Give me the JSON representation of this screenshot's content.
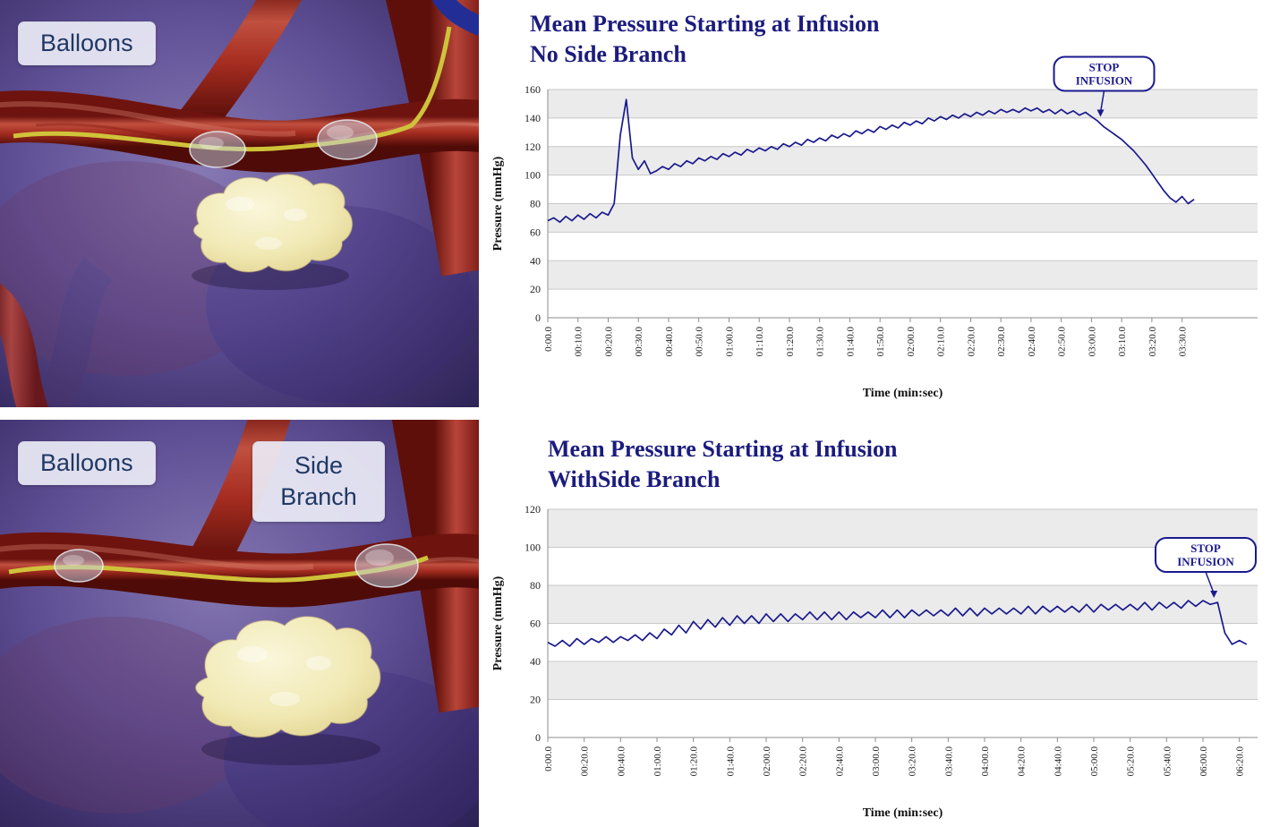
{
  "panels": {
    "top_left": {
      "balloons_label": "Balloons"
    },
    "bottom_left": {
      "balloons_label": "Balloons",
      "side_branch_label": "Side Branch"
    }
  },
  "colors": {
    "line": "#1a1a8e",
    "title": "#1b1b7e",
    "band_gray": "#ebebeb",
    "grid": "#c9c9c9",
    "axis": "#8c8c8c",
    "tick_text": "#222222",
    "axis_label": "#111111"
  },
  "chart_data": [
    {
      "type": "line",
      "title": "Mean Pressure Starting at Infusion",
      "subtitle": "No Side Branch",
      "xlabel": "Time (min:sec)",
      "ylabel": "Pressure (mmHg)",
      "ylim": [
        0,
        160
      ],
      "ytick_step": 20,
      "xmax": 235,
      "x_tick_step": 10,
      "x_tick_labels": [
        "0:00.0",
        "00:10.0",
        "00:20.0",
        "00:30.0",
        "00:40.0",
        "00:50.0",
        "01:00.0",
        "01:10.0",
        "01:20.0",
        "01:30.0",
        "01:40.0",
        "01:50.0",
        "02:00.0",
        "02:10.0",
        "02:20.0",
        "02:30.0",
        "02:40.0",
        "02:50.0",
        "03:00.0",
        "03:10.0",
        "03:20.0",
        "03:30.0"
      ],
      "annotation": {
        "label_lines": [
          "STOP",
          "INFUSION"
        ],
        "time": 183,
        "value": 139
      },
      "series": [
        {
          "name": "Mean Pressure",
          "x_start": 0,
          "x_step": 2,
          "y": [
            68,
            70,
            67,
            71,
            68,
            72,
            69,
            73,
            70,
            74,
            72,
            80,
            128,
            153,
            112,
            104,
            110,
            101,
            103,
            106,
            104,
            108,
            106,
            110,
            108,
            112,
            110,
            113,
            111,
            115,
            113,
            116,
            114,
            118,
            116,
            119,
            117,
            120,
            118,
            122,
            120,
            123,
            121,
            125,
            123,
            126,
            124,
            128,
            126,
            129,
            127,
            131,
            129,
            132,
            130,
            134,
            132,
            135,
            133,
            137,
            135,
            138,
            136,
            140,
            138,
            141,
            139,
            142,
            140,
            143,
            141,
            144,
            142,
            145,
            143,
            146,
            144,
            146,
            144,
            147,
            145,
            147,
            144,
            146,
            143,
            146,
            143,
            145,
            142,
            144,
            141,
            138,
            134,
            131,
            128,
            125,
            121,
            117,
            112,
            107,
            101,
            95,
            89,
            84,
            81,
            85,
            80,
            83
          ]
        }
      ]
    },
    {
      "type": "line",
      "title": "Mean Pressure Starting at Infusion",
      "subtitle": "WithSide Branch",
      "xlabel": "Time (min:sec)",
      "ylabel": "Pressure (mmHg)",
      "ylim": [
        0,
        120
      ],
      "ytick_step": 20,
      "xmax": 390,
      "x_tick_step": 20,
      "x_tick_labels": [
        "0:00.0",
        "00:20.0",
        "00:40.0",
        "01:00.0",
        "01:20.0",
        "01:40.0",
        "02:00.0",
        "02:20.0",
        "02:40.0",
        "03:00.0",
        "03:20.0",
        "03:40.0",
        "04:00.0",
        "04:20.0",
        "04:40.0",
        "05:00.0",
        "05:20.0",
        "05:40.0",
        "06:00.0",
        "06:20.0"
      ],
      "annotation": {
        "label_lines": [
          "STOP",
          "INFUSION"
        ],
        "time": 366,
        "value": 72
      },
      "series": [
        {
          "name": "Mean Pressure",
          "x_start": 0,
          "x_step": 4,
          "y": [
            50,
            48,
            51,
            48,
            52,
            49,
            52,
            50,
            53,
            50,
            53,
            51,
            54,
            51,
            55,
            52,
            57,
            54,
            59,
            55,
            61,
            57,
            62,
            58,
            63,
            59,
            64,
            60,
            64,
            60,
            65,
            61,
            65,
            61,
            65,
            62,
            66,
            62,
            66,
            62,
            66,
            62,
            66,
            63,
            66,
            63,
            67,
            63,
            67,
            63,
            67,
            64,
            67,
            64,
            67,
            64,
            68,
            64,
            68,
            64,
            68,
            65,
            68,
            65,
            68,
            65,
            69,
            65,
            69,
            66,
            69,
            66,
            69,
            66,
            70,
            66,
            70,
            67,
            70,
            67,
            70,
            67,
            71,
            67,
            71,
            68,
            71,
            68,
            72,
            69,
            72,
            70,
            71,
            55,
            49,
            51,
            49
          ]
        }
      ]
    }
  ]
}
